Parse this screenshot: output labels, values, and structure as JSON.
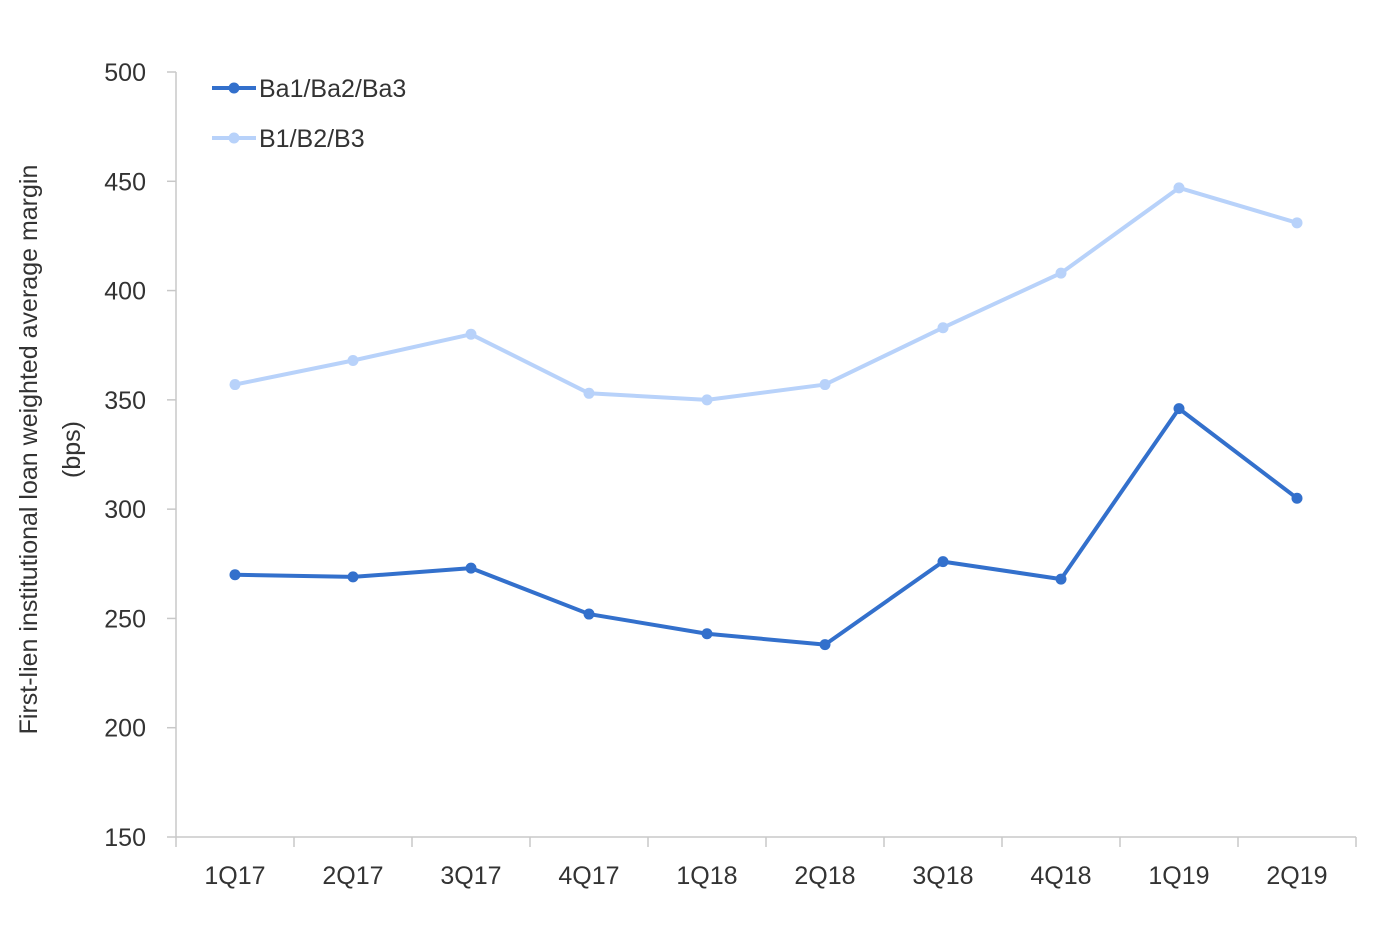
{
  "chart_data": {
    "type": "line",
    "title": "",
    "xlabel": "",
    "ylabel_lines": [
      "First-lien institutional loan weighted average margin",
      "(bps)"
    ],
    "ylim": [
      150,
      500
    ],
    "yticks": [
      150,
      200,
      250,
      300,
      350,
      400,
      450,
      500
    ],
    "categories": [
      "1Q17",
      "2Q17",
      "3Q17",
      "4Q17",
      "1Q18",
      "2Q18",
      "3Q18",
      "4Q18",
      "1Q19",
      "2Q19"
    ],
    "grid": false,
    "legend_position": "top-left",
    "series": [
      {
        "name": "Ba1/Ba2/Ba3",
        "color": "#3370cc",
        "values": [
          270,
          269,
          273,
          252,
          243,
          238,
          276,
          268,
          346,
          305
        ]
      },
      {
        "name": "B1/B2/B3",
        "color": "#b8d2fa",
        "values": [
          357,
          368,
          380,
          353,
          350,
          357,
          383,
          408,
          447,
          431
        ]
      }
    ]
  }
}
